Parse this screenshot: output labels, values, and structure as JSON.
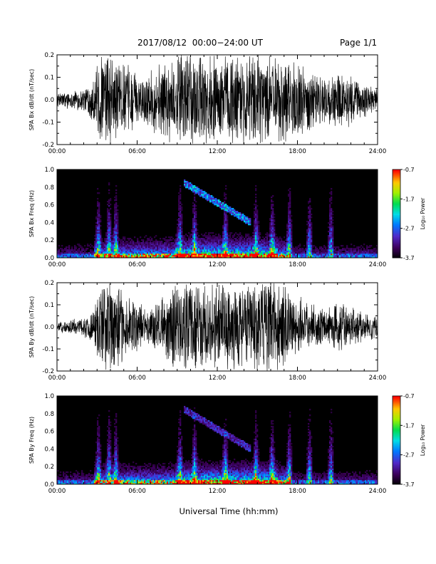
{
  "header": {
    "title": "2017/08/12  00:00−24:00 UT",
    "page": "Page 1/1"
  },
  "chart_data": [
    {
      "type": "line",
      "ylabel": "SPA Bx dB/dt (nT/sec)",
      "xlim": [
        "00:00",
        "24:00"
      ],
      "ylim": [
        -0.2,
        0.2
      ],
      "x_ticks": [
        "00:00",
        "06:00",
        "12:00",
        "18:00",
        "24:00"
      ],
      "y_ticks": [
        "-0.2",
        "-0.1",
        "0.0",
        "0.1",
        "0.2"
      ],
      "x_hours": [
        0,
        1,
        2,
        2.8,
        3.2,
        3.6,
        4,
        5,
        6,
        7,
        8,
        9,
        10,
        11,
        12,
        13,
        14,
        15,
        16,
        17,
        18,
        19,
        20,
        21,
        22,
        23,
        24
      ],
      "envelope": [
        0.03,
        0.035,
        0.05,
        0.09,
        0.2,
        0.2,
        0.2,
        0.15,
        0.1,
        0.12,
        0.15,
        0.2,
        0.2,
        0.2,
        0.2,
        0.2,
        0.2,
        0.2,
        0.2,
        0.2,
        0.15,
        0.12,
        0.1,
        0.12,
        0.1,
        0.07,
        0.06
      ]
    },
    {
      "type": "heatmap",
      "ylabel": "SPA Bx Freq (Hz)",
      "xlim": [
        "00:00",
        "24:00"
      ],
      "ylim": [
        0.0,
        1.0
      ],
      "x_ticks": [
        "00:00",
        "06:00",
        "12:00",
        "18:00",
        "24:00"
      ],
      "y_ticks": [
        "0.0",
        "0.2",
        "0.4",
        "0.6",
        "0.8",
        "1.0"
      ],
      "colorbar": {
        "label": "Log₁₀ Power",
        "ticks": [
          "-0.7",
          "-1.7",
          "-2.7",
          "-3.7"
        ],
        "range": [
          -3.7,
          -0.7
        ]
      },
      "bursts_hours": [
        3.1,
        3.9,
        4.4,
        9.2,
        10.3,
        12.6,
        14.9,
        16.1,
        17.4,
        18.9,
        20.5
      ]
    },
    {
      "type": "line",
      "ylabel": "SPA By dB/dt (nT/sec)",
      "xlim": [
        "00:00",
        "24:00"
      ],
      "ylim": [
        -0.2,
        0.2
      ],
      "x_ticks": [
        "00:00",
        "06:00",
        "12:00",
        "18:00",
        "24:00"
      ],
      "y_ticks": [
        "-0.2",
        "-0.1",
        "0.0",
        "0.1",
        "0.2"
      ],
      "x_hours": [
        0,
        1,
        2,
        2.8,
        3.2,
        3.6,
        4,
        5,
        6,
        7,
        8,
        9,
        10,
        11,
        12,
        13,
        14,
        15,
        16,
        17,
        18,
        19,
        20,
        21,
        22,
        23,
        24
      ],
      "envelope": [
        0.02,
        0.03,
        0.04,
        0.08,
        0.2,
        0.2,
        0.2,
        0.14,
        0.1,
        0.1,
        0.13,
        0.2,
        0.2,
        0.2,
        0.2,
        0.2,
        0.2,
        0.2,
        0.2,
        0.2,
        0.12,
        0.1,
        0.08,
        0.1,
        0.08,
        0.06,
        0.05
      ]
    },
    {
      "type": "heatmap",
      "ylabel": "SPA By Freq (Hz)",
      "xlim": [
        "00:00",
        "24:00"
      ],
      "ylim": [
        0.0,
        1.0
      ],
      "x_ticks": [
        "00:00",
        "06:00",
        "12:00",
        "18:00",
        "24:00"
      ],
      "y_ticks": [
        "0.0",
        "0.2",
        "0.4",
        "0.6",
        "0.8",
        "1.0"
      ],
      "colorbar": {
        "label": "Log₁₀ Power",
        "ticks": [
          "-0.7",
          "-1.7",
          "-2.7",
          "-3.7"
        ],
        "range": [
          -3.7,
          -0.7
        ]
      },
      "bursts_hours": [
        3.1,
        3.9,
        4.4,
        9.2,
        10.3,
        12.6,
        14.9,
        16.1,
        17.4,
        18.9,
        20.5
      ]
    }
  ],
  "xlabel": "Universal Time (hh:mm)"
}
